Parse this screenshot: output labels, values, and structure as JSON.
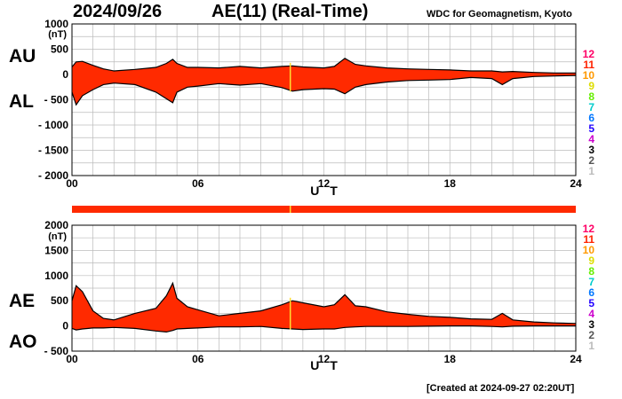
{
  "header": {
    "date": "2024/09/26",
    "title": "AE(11) (Real-Time)",
    "source": "WDC for Geomagnetism, Kyoto"
  },
  "footer": {
    "created": "[Created at 2024-09-27 02:20UT]"
  },
  "colors": {
    "fill": "#ff2a00",
    "line": "#000000",
    "grid": "#bbbbbb",
    "marker": "#ffdd33",
    "station_colors": [
      "#ff0066",
      "#ff2200",
      "#ff9900",
      "#dddd00",
      "#66ee00",
      "#00cccc",
      "#0077ff",
      "#2200ff",
      "#cc00cc",
      "#000000",
      "#555555",
      "#bbbbbb"
    ]
  },
  "chart_data": [
    {
      "type": "area",
      "title": "AU / AL",
      "upper_label": "AU",
      "lower_label": "AL",
      "unit": "(nT)",
      "xlabel": "U T",
      "xlim": [
        0,
        24
      ],
      "ylim": [
        -2000,
        1000
      ],
      "x_ticks": [
        {
          "v": 0,
          "label": "00"
        },
        {
          "v": 6,
          "label": "06"
        },
        {
          "v": 12,
          "label": "12"
        },
        {
          "v": 18,
          "label": "18"
        },
        {
          "v": 24,
          "label": "24"
        }
      ],
      "y_ticks": [
        {
          "v": 1000,
          "label": "1000"
        },
        {
          "v": 500,
          "label": "500"
        },
        {
          "v": 0,
          "label": "0"
        },
        {
          "v": -500,
          "label": "- 500"
        },
        {
          "v": -1000,
          "label": "- 1000"
        },
        {
          "v": -1500,
          "label": "- 1500"
        },
        {
          "v": -2000,
          "label": "- 2000"
        }
      ],
      "marker_x": 10.4,
      "x": [
        0,
        0.2,
        0.5,
        1,
        1.5,
        2,
        3,
        4,
        4.5,
        4.8,
        5,
        5.5,
        6,
        7,
        8,
        9,
        10,
        10.5,
        11,
        12,
        12.5,
        13,
        13.5,
        14,
        15,
        16,
        17,
        18,
        19,
        20,
        20.5,
        21,
        22,
        23,
        24
      ],
      "series": [
        {
          "name": "AU",
          "values": [
            150,
            250,
            260,
            180,
            110,
            70,
            100,
            140,
            220,
            300,
            220,
            140,
            140,
            130,
            160,
            130,
            160,
            170,
            150,
            130,
            160,
            320,
            200,
            170,
            130,
            110,
            100,
            90,
            70,
            70,
            50,
            60,
            40,
            30,
            30
          ]
        },
        {
          "name": "AL",
          "values": [
            -350,
            -600,
            -420,
            -300,
            -200,
            -170,
            -200,
            -350,
            -480,
            -560,
            -350,
            -250,
            -230,
            -180,
            -210,
            -180,
            -260,
            -330,
            -300,
            -280,
            -290,
            -380,
            -250,
            -200,
            -150,
            -120,
            -110,
            -100,
            -60,
            -80,
            -200,
            -80,
            -40,
            -30,
            -20
          ]
        }
      ],
      "stations": [
        "12",
        "11",
        "10",
        "9",
        "8",
        "7",
        "6",
        "5",
        "4",
        "3",
        "2",
        "1"
      ]
    },
    {
      "type": "area",
      "title": "AE / AO",
      "upper_label": "AE",
      "lower_label": "AO",
      "unit": "(nT)",
      "xlabel": "U T",
      "xlim": [
        0,
        24
      ],
      "ylim": [
        -500,
        2000
      ],
      "x_ticks": [
        {
          "v": 0,
          "label": "00"
        },
        {
          "v": 6,
          "label": "06"
        },
        {
          "v": 12,
          "label": "12"
        },
        {
          "v": 18,
          "label": "18"
        },
        {
          "v": 24,
          "label": "24"
        }
      ],
      "y_ticks": [
        {
          "v": 2000,
          "label": "2000"
        },
        {
          "v": 1500,
          "label": "1500"
        },
        {
          "v": 1000,
          "label": "1000"
        },
        {
          "v": 500,
          "label": "500"
        },
        {
          "v": 0,
          "label": "0"
        },
        {
          "v": -500,
          "label": "- 500"
        }
      ],
      "marker_x": 10.4,
      "x": [
        0,
        0.2,
        0.5,
        1,
        1.5,
        2,
        3,
        4,
        4.5,
        4.8,
        5,
        5.5,
        6,
        7,
        8,
        9,
        10,
        10.5,
        11,
        12,
        12.5,
        13,
        13.5,
        14,
        15,
        16,
        17,
        18,
        19,
        20,
        20.5,
        21,
        22,
        23,
        24
      ],
      "series": [
        {
          "name": "AE",
          "values": [
            500,
            800,
            680,
            300,
            150,
            120,
            250,
            350,
            600,
            850,
            550,
            380,
            320,
            200,
            250,
            300,
            420,
            500,
            460,
            380,
            420,
            620,
            400,
            380,
            280,
            230,
            190,
            170,
            140,
            130,
            250,
            120,
            80,
            60,
            50
          ]
        },
        {
          "name": "AO",
          "values": [
            -50,
            -80,
            -60,
            -40,
            -40,
            -30,
            -50,
            -100,
            -120,
            -90,
            -60,
            -50,
            -40,
            -20,
            -20,
            -10,
            -50,
            -60,
            -70,
            -60,
            -60,
            -30,
            -20,
            -10,
            -10,
            -10,
            -5,
            0,
            0,
            -10,
            -20,
            -5,
            0,
            0,
            0
          ]
        }
      ],
      "stations": [
        "12",
        "11",
        "10",
        "9",
        "8",
        "7",
        "6",
        "5",
        "4",
        "3",
        "2",
        "1"
      ]
    }
  ]
}
